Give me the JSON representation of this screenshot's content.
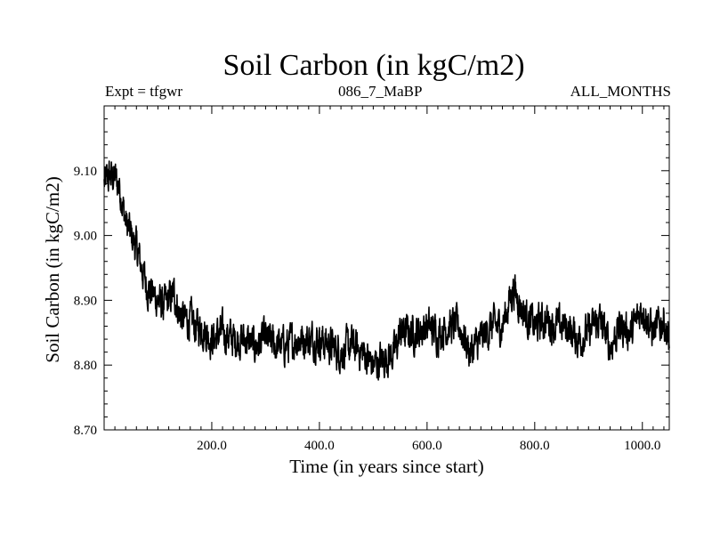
{
  "chart_data": {
    "type": "line",
    "title": "Soil Carbon (in kgC/m2)",
    "subtitle_left": "Expt = tfgwr",
    "subtitle_center": "086_7_MaBP",
    "subtitle_right": "ALL_MONTHS",
    "xlabel": "Time (in years since start)",
    "ylabel": "Soil Carbon (in kgC/m2)",
    "xlim": [
      0,
      1050
    ],
    "ylim": [
      8.7,
      9.2
    ],
    "x_ticks": [
      200,
      400,
      600,
      800,
      1000
    ],
    "x_tick_labels": [
      "200.0",
      "400.0",
      "600.0",
      "800.0",
      "1000.0"
    ],
    "y_ticks": [
      8.7,
      8.8,
      8.9,
      9.0,
      9.1
    ],
    "y_tick_labels": [
      "8.70",
      "8.80",
      "8.90",
      "9.00",
      "9.10"
    ],
    "grid": false,
    "series": [
      {
        "color": "#000000",
        "x": [
          0,
          10,
          20,
          30,
          40,
          50,
          60,
          70,
          80,
          90,
          100,
          110,
          120,
          130,
          140,
          150,
          160,
          170,
          180,
          190,
          200,
          220,
          240,
          260,
          280,
          300,
          320,
          340,
          360,
          380,
          400,
          420,
          440,
          460,
          480,
          500,
          520,
          540,
          550,
          560,
          580,
          600,
          620,
          640,
          660,
          680,
          700,
          720,
          740,
          760,
          780,
          800,
          820,
          840,
          860,
          880,
          900,
          920,
          940,
          960,
          980,
          1000,
          1020,
          1040,
          1050
        ],
        "y": [
          9.08,
          9.09,
          9.09,
          9.07,
          9.02,
          9.0,
          8.98,
          8.95,
          8.92,
          8.91,
          8.9,
          8.89,
          8.9,
          8.91,
          8.88,
          8.87,
          8.87,
          8.86,
          8.86,
          8.85,
          8.84,
          8.85,
          8.84,
          8.84,
          8.83,
          8.84,
          8.83,
          8.83,
          8.84,
          8.84,
          8.84,
          8.83,
          8.82,
          8.83,
          8.82,
          8.8,
          8.81,
          8.82,
          8.85,
          8.85,
          8.85,
          8.86,
          8.85,
          8.86,
          8.86,
          8.82,
          8.84,
          8.86,
          8.86,
          8.92,
          8.88,
          8.86,
          8.87,
          8.86,
          8.86,
          8.84,
          8.85,
          8.87,
          8.83,
          8.86,
          8.85,
          8.89,
          8.85,
          8.87,
          8.83
        ]
      }
    ]
  }
}
